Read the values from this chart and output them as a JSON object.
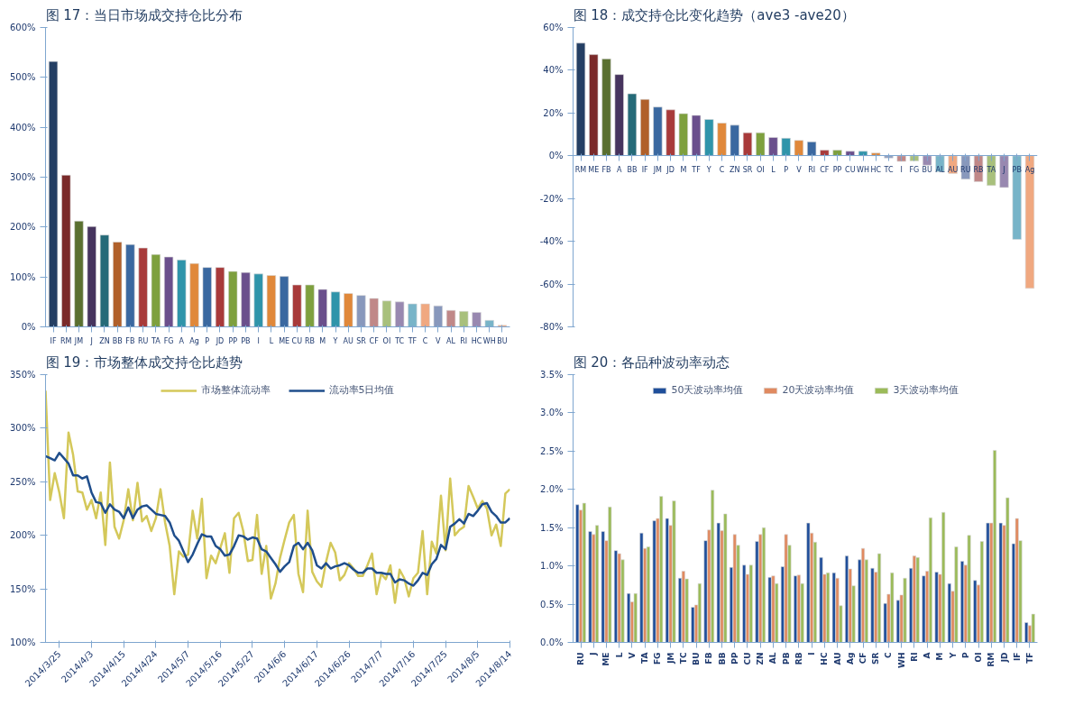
{
  "chart_data": [
    {
      "type": "bar",
      "title": "图 17：当日市场成交持仓比分布",
      "categories": [
        "IF",
        "RM",
        "JM",
        "J",
        "ZN",
        "BB",
        "FB",
        "RU",
        "TA",
        "FG",
        "A",
        "Ag",
        "P",
        "JD",
        "PP",
        "PB",
        "I",
        "L",
        "ME",
        "CU",
        "RB",
        "M",
        "Y",
        "AU",
        "SR",
        "CF",
        "OI",
        "TC",
        "TF",
        "C",
        "V",
        "AL",
        "RI",
        "HC",
        "WH",
        "BU"
      ],
      "values": [
        532,
        304,
        212,
        201,
        184,
        170,
        165,
        158,
        145,
        140,
        134,
        127,
        119,
        119,
        111,
        109,
        106,
        103,
        101,
        84,
        84,
        75,
        70,
        67,
        63,
        57,
        52,
        50,
        46,
        46,
        42,
        33,
        31,
        29,
        13,
        3
      ],
      "colors": [
        "#243f64",
        "#7a2a2a",
        "#5a7030",
        "#46345e",
        "#256a78",
        "#b0602a",
        "#3a68a0",
        "#a83a3a",
        "#7ea03e",
        "#6a4f8c",
        "#2f94aa",
        "#e0883a",
        "#3a68a0",
        "#a83a3a",
        "#7ea03e",
        "#6a4f8c",
        "#2f94aa",
        "#e0883a",
        "#3a68a0",
        "#a83a3a",
        "#7ea03e",
        "#6a4f8c",
        "#2f94aa",
        "#e0883a",
        "#8898bc",
        "#c08888",
        "#a8c07c",
        "#9888b0",
        "#78b4c8",
        "#f0a880",
        "#8898bc",
        "#c08888",
        "#a8c07c",
        "#9888b0",
        "#78b4c8",
        "#f0a880"
      ],
      "ylim": [
        0,
        600
      ],
      "yticks": [
        {
          "value": 0,
          "label": "0%"
        },
        {
          "value": 100,
          "label": "100%"
        },
        {
          "value": 200,
          "label": "200%"
        },
        {
          "value": 300,
          "label": "300%"
        },
        {
          "value": 400,
          "label": "400%"
        },
        {
          "value": 500,
          "label": "500%"
        },
        {
          "value": 600,
          "label": "600%"
        }
      ]
    },
    {
      "type": "bar",
      "title": "图 18：成交持仓比变化趋势（ave3 -ave20）",
      "categories": [
        "RM",
        "ME",
        "FB",
        "A",
        "BB",
        "IF",
        "JM",
        "JD",
        "M",
        "TF",
        "Y",
        "C",
        "ZN",
        "SR",
        "OI",
        "L",
        "P",
        "V",
        "RI",
        "CF",
        "PP",
        "CU",
        "WH",
        "HC",
        "TC",
        "I",
        "FG",
        "BU",
        "AL",
        "AU",
        "RU",
        "RB",
        "TA",
        "J",
        "PB",
        "Ag"
      ],
      "values": [
        52.7,
        47.3,
        45.3,
        38.0,
        29.0,
        26.4,
        22.8,
        21.5,
        19.7,
        18.9,
        17.0,
        15.3,
        14.3,
        10.8,
        10.8,
        8.6,
        8.2,
        7.2,
        6.5,
        2.6,
        2.6,
        2.1,
        2.1,
        1.3,
        -1.0,
        -2.6,
        -2.4,
        -4.4,
        -7.5,
        -8.3,
        -10.9,
        -12.1,
        -13.9,
        -14.8,
        -39.1,
        -62.0
      ],
      "colors": [
        "#243f64",
        "#7a2a2a",
        "#5a7030",
        "#46345e",
        "#256a78",
        "#b0602a",
        "#3a68a0",
        "#a83a3a",
        "#7ea03e",
        "#6a4f8c",
        "#2f94aa",
        "#e0883a",
        "#3a68a0",
        "#a83a3a",
        "#7ea03e",
        "#6a4f8c",
        "#2f94aa",
        "#e0883a",
        "#3a68a0",
        "#a83a3a",
        "#7ea03e",
        "#6a4f8c",
        "#2f94aa",
        "#e0883a",
        "#8898bc",
        "#c08888",
        "#a8c07c",
        "#9888b0",
        "#78b4c8",
        "#f0a880",
        "#8898bc",
        "#c08888",
        "#a8c07c",
        "#9888b0",
        "#78b4c8",
        "#f0a880"
      ],
      "ylim": [
        -80,
        60
      ],
      "yticks": [
        {
          "value": -80,
          "label": "-80%"
        },
        {
          "value": -60,
          "label": "-60%"
        },
        {
          "value": -40,
          "label": "-40%"
        },
        {
          "value": -20,
          "label": "-20%"
        },
        {
          "value": 0,
          "label": "0%"
        },
        {
          "value": 20,
          "label": "20%"
        },
        {
          "value": 40,
          "label": "40%"
        },
        {
          "value": 60,
          "label": "60%"
        }
      ]
    },
    {
      "type": "line",
      "title": "图 19：市场整体成交持仓比趋势",
      "legend": "top",
      "line_style": "solid",
      "categories": [
        null,
        null,
        null,
        "2014/3/25",
        null,
        null,
        null,
        null,
        null,
        null,
        "2014/4/3",
        null,
        null,
        null,
        null,
        null,
        null,
        "2014/4/15",
        null,
        null,
        null,
        null,
        null,
        null,
        "2014/4/24",
        null,
        null,
        null,
        null,
        null,
        null,
        "2014/5/7",
        null,
        null,
        null,
        null,
        null,
        null,
        "2014/5/16",
        null,
        null,
        null,
        null,
        null,
        null,
        "2014/5/27",
        null,
        null,
        null,
        null,
        null,
        null,
        "2014/6/6",
        null,
        null,
        null,
        null,
        null,
        null,
        "2014/6/17",
        null,
        null,
        null,
        null,
        null,
        null,
        "2014/6/26",
        null,
        null,
        null,
        null,
        null,
        null,
        "2014/7/7",
        null,
        null,
        null,
        null,
        null,
        null,
        "2014/7/16",
        null,
        null,
        null,
        null,
        null,
        null,
        "2014/7/25",
        null,
        null,
        null,
        null,
        null,
        null,
        "2014/8/5",
        null,
        null,
        null,
        null,
        null,
        null,
        "2014/8/14"
      ],
      "series": [
        {
          "name": "市场整体流动率",
          "color": "#d4c85a",
          "values": [
            335,
            233,
            258,
            240,
            216,
            296,
            275,
            241,
            240,
            224,
            233,
            216,
            240,
            191,
            268,
            208,
            197,
            214,
            243,
            214,
            249,
            213,
            218,
            204,
            216,
            243,
            212,
            190,
            145,
            185,
            180,
            182,
            223,
            197,
            234,
            160,
            181,
            174,
            188,
            202,
            165,
            216,
            221,
            204,
            176,
            177,
            219,
            164,
            190,
            141,
            155,
            179,
            196,
            212,
            219,
            164,
            147,
            223,
            166,
            157,
            152,
            175,
            193,
            184,
            158,
            163,
            174,
            169,
            162,
            162,
            172,
            183,
            145,
            164,
            159,
            172,
            137,
            168,
            160,
            143,
            160,
            165,
            204,
            145,
            194,
            183,
            237,
            186,
            253,
            200,
            205,
            208,
            246,
            236,
            225,
            232,
            225,
            200,
            210,
            190,
            239,
            243
          ]
        },
        {
          "name": "流动率5日均值",
          "color": "#1f4e8c",
          "values": [
            274,
            272,
            270,
            277,
            272,
            267,
            256,
            256,
            253,
            255,
            240,
            231,
            230,
            221,
            229,
            224,
            222,
            216,
            226,
            216,
            224,
            227,
            228,
            224,
            220,
            219,
            218,
            212,
            200,
            195,
            185,
            175,
            182,
            192,
            201,
            199,
            199,
            190,
            187,
            181,
            182,
            190,
            200,
            199,
            196,
            198,
            197,
            187,
            185,
            179,
            173,
            166,
            171,
            175,
            190,
            193,
            187,
            193,
            186,
            172,
            169,
            174,
            169,
            171,
            172,
            174,
            172,
            168,
            165,
            165,
            169,
            169,
            165,
            165,
            164,
            164,
            156,
            159,
            158,
            155,
            153,
            158,
            165,
            163,
            173,
            178,
            191,
            187,
            208,
            211,
            215,
            211,
            220,
            218,
            223,
            229,
            230,
            222,
            218,
            212,
            212,
            216
          ]
        }
      ],
      "ylim": [
        100,
        350
      ],
      "yticks": [
        {
          "value": 100,
          "label": "100%"
        },
        {
          "value": 150,
          "label": "150%"
        },
        {
          "value": 200,
          "label": "200%"
        },
        {
          "value": 250,
          "label": "250%"
        },
        {
          "value": 300,
          "label": "300%"
        },
        {
          "value": 350,
          "label": "350%"
        }
      ]
    },
    {
      "type": "bar",
      "title": "图 20：各品种波动率动态",
      "legend": "top",
      "categories": [
        "RU",
        "J",
        "ME",
        "L",
        "V",
        "TA",
        "FG",
        "JM",
        "TC",
        "BU",
        "FB",
        "BB",
        "PP",
        "CU",
        "ZN",
        "AL",
        "PB",
        "RB",
        "I",
        "HC",
        "AU",
        "Ag",
        "CF",
        "SR",
        "C",
        "WH",
        "RI",
        "A",
        "M",
        "Y",
        "P",
        "OI",
        "RM",
        "JD",
        "IF",
        "TF"
      ],
      "series": [
        {
          "name": "50天波动率均值",
          "color": "#1f4e9a",
          "values": [
            1.8,
            1.45,
            1.45,
            1.2,
            0.64,
            1.43,
            1.59,
            1.62,
            0.84,
            0.46,
            1.33,
            1.56,
            0.98,
            1.01,
            1.32,
            0.85,
            0.99,
            0.87,
            1.56,
            1.11,
            0.91,
            1.13,
            1.08,
            0.97,
            0.51,
            0.55,
            0.97,
            0.87,
            0.92,
            0.77,
            1.06,
            0.81,
            1.56,
            1.56,
            1.29,
            0.26
          ]
        },
        {
          "name": "20天波动率均值",
          "color": "#e08a60",
          "values": [
            1.73,
            1.41,
            1.33,
            1.16,
            0.53,
            1.23,
            1.62,
            1.53,
            0.93,
            0.49,
            1.47,
            1.46,
            1.41,
            0.89,
            1.41,
            0.87,
            1.41,
            0.88,
            1.43,
            0.89,
            0.84,
            0.96,
            1.23,
            0.92,
            0.63,
            0.62,
            1.13,
            0.93,
            0.89,
            0.67,
            1.01,
            0.75,
            1.56,
            1.53,
            1.62,
            0.22
          ]
        },
        {
          "name": "3天波动率均值",
          "color": "#9bbb59",
          "values": [
            1.82,
            1.53,
            1.77,
            1.08,
            0.64,
            1.25,
            1.91,
            1.85,
            0.83,
            0.77,
            1.99,
            1.68,
            1.27,
            1.01,
            1.5,
            0.77,
            1.27,
            0.77,
            1.31,
            0.91,
            0.48,
            0.74,
            1.08,
            1.16,
            0.91,
            0.84,
            1.11,
            1.63,
            1.7,
            1.25,
            1.4,
            1.32,
            2.51,
            1.89,
            1.33,
            0.37
          ]
        }
      ],
      "ylim": [
        0,
        3.5
      ],
      "yticks": [
        {
          "value": 0,
          "label": "0.0%"
        },
        {
          "value": 0.5,
          "label": "0.5%"
        },
        {
          "value": 1.0,
          "label": "1.0%"
        },
        {
          "value": 1.5,
          "label": "1.5%"
        },
        {
          "value": 2.0,
          "label": "2.0%"
        },
        {
          "value": 2.5,
          "label": "2.5%"
        },
        {
          "value": 3.0,
          "label": "3.0%"
        },
        {
          "value": 3.5,
          "label": "3.5%"
        }
      ]
    }
  ]
}
